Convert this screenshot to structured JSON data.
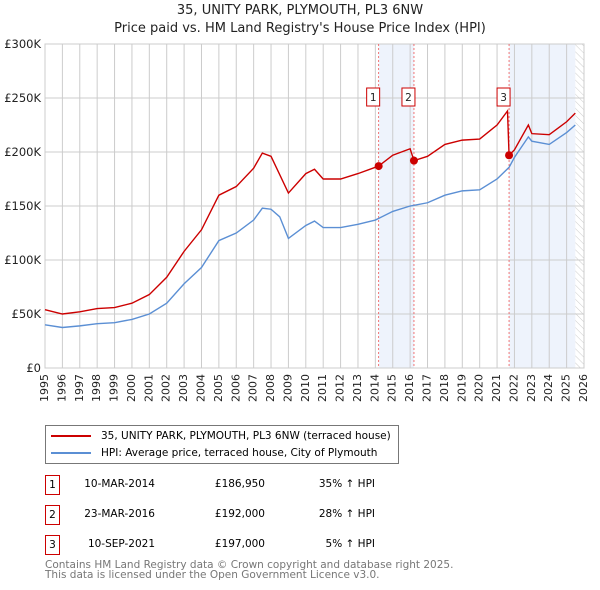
{
  "chart_data": {
    "type": "line",
    "title": "35, UNITY PARK, PLYMOUTH, PL3 6NW",
    "subtitle": "Price paid vs. HM Land Registry's House Price Index (HPI)",
    "xlim": [
      1995,
      2026
    ],
    "ylim": [
      0,
      300000
    ],
    "x_ticks": [
      "1995",
      "1996",
      "1997",
      "1998",
      "1999",
      "2000",
      "2001",
      "2002",
      "2003",
      "2004",
      "2005",
      "2006",
      "2007",
      "2008",
      "2009",
      "2010",
      "2011",
      "2012",
      "2013",
      "2014",
      "2015",
      "2016",
      "2017",
      "2018",
      "2019",
      "2020",
      "2021",
      "2022",
      "2023",
      "2024",
      "2025",
      "2026"
    ],
    "y_ticks": [
      {
        "v": 0,
        "label": "£0"
      },
      {
        "v": 50000,
        "label": "£50K"
      },
      {
        "v": 100000,
        "label": "£100K"
      },
      {
        "v": 150000,
        "label": "£150K"
      },
      {
        "v": 200000,
        "label": "£200K"
      },
      {
        "v": 250000,
        "label": "£250K"
      },
      {
        "v": 300000,
        "label": "£300K"
      }
    ],
    "grid": true,
    "series": [
      {
        "name": "35, UNITY PARK, PLYMOUTH, PL3 6NW (terraced house)",
        "color": "#cc0000",
        "x": [
          1995,
          1996,
          1997,
          1998,
          1999,
          2000,
          2001,
          2002,
          2003,
          2004,
          2005,
          2006,
          2007,
          2007.5,
          2008,
          2009,
          2010,
          2010.5,
          2011,
          2012,
          2013,
          2014.19,
          2015,
          2016,
          2016.22,
          2017,
          2018,
          2019,
          2020,
          2021,
          2021.6,
          2021.69,
          2022,
          2022.8,
          2023,
          2024,
          2025,
          2025.5
        ],
        "y": [
          54000,
          50000,
          52000,
          55000,
          56000,
          60000,
          68000,
          84000,
          108000,
          128000,
          160000,
          168000,
          185000,
          199000,
          196000,
          162000,
          180000,
          184000,
          175000,
          175000,
          180000,
          186950,
          197000,
          203000,
          192000,
          196000,
          207000,
          211000,
          212000,
          225000,
          238000,
          197000,
          202000,
          225000,
          217000,
          216000,
          228000,
          236000
        ]
      },
      {
        "name": "HPI: Average price, terraced house, City of Plymouth",
        "color": "#5b8fd4",
        "x": [
          1995,
          1996,
          1997,
          1998,
          1999,
          2000,
          2001,
          2002,
          2003,
          2004,
          2005,
          2006,
          2007,
          2007.5,
          2008,
          2008.5,
          2009,
          2010,
          2010.5,
          2011,
          2012,
          2013,
          2014,
          2015,
          2016,
          2017,
          2018,
          2019,
          2020,
          2021,
          2021.7,
          2022,
          2022.8,
          2023,
          2024,
          2025,
          2025.5
        ],
        "y": [
          40000,
          37500,
          39000,
          41000,
          42000,
          45000,
          50000,
          60000,
          78000,
          93000,
          118000,
          125000,
          137000,
          148000,
          147000,
          140000,
          120000,
          132000,
          136000,
          130000,
          130000,
          133000,
          137000,
          145000,
          150000,
          153000,
          160000,
          164000,
          165000,
          175000,
          186000,
          195000,
          214000,
          210000,
          207000,
          218000,
          225000
        ]
      }
    ],
    "sales": [
      {
        "id": "1",
        "x": 2014.19,
        "date": "10-MAR-2014",
        "price": "£186,950",
        "value": 186950,
        "hpi": "35% ↑ HPI"
      },
      {
        "id": "2",
        "x": 2016.22,
        "date": "23-MAR-2016",
        "price": "£192,000",
        "value": 192000,
        "hpi": "28% ↑ HPI"
      },
      {
        "id": "3",
        "x": 2021.69,
        "date": "10-SEP-2021",
        "price": "£197,000",
        "value": 197000,
        "hpi": "5% ↑ HPI"
      }
    ],
    "shaded_ranges": [
      [
        2014.19,
        2016.22
      ],
      [
        2021.69,
        2025.5
      ]
    ],
    "hatched_from": 2025.5,
    "legend_placement": "below"
  },
  "footer": {
    "line1": "Contains HM Land Registry data © Crown copyright and database right 2025.",
    "line2": "This data is licensed under the Open Government Licence v3.0."
  }
}
